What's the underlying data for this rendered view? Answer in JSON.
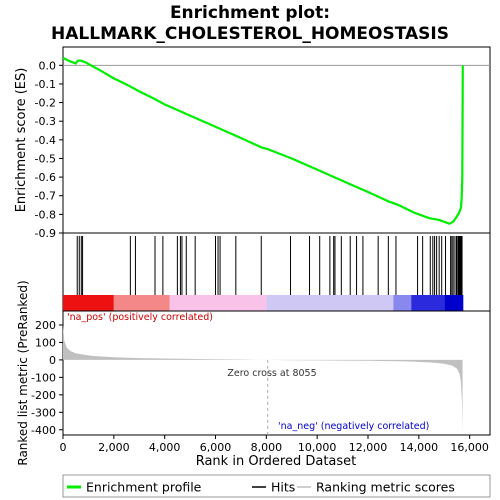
{
  "chart_data": {
    "type": "line",
    "title_line1": "Enrichment plot:",
    "title_line2": "HALLMARK_CHOLESTEROL_HOMEOSTASIS",
    "xlabel": "Rank in Ordered Dataset",
    "ylabel_top": "Enrichment score (ES)",
    "ylabel_bottom": "Ranked list metric (PreRanked)",
    "x_range": [
      0,
      16800
    ],
    "x_ticks": [
      0,
      2000,
      4000,
      6000,
      8000,
      10000,
      12000,
      14000,
      16000
    ],
    "x_tick_labels": [
      "0",
      "2,000",
      "4,000",
      "6,000",
      "8,000",
      "10,000",
      "12,000",
      "14,000",
      "16,000"
    ],
    "es_range": [
      -0.9,
      0.05
    ],
    "es_ticks": [
      0.0,
      -0.1,
      -0.2,
      -0.3,
      -0.4,
      -0.5,
      -0.6,
      -0.7,
      -0.8,
      -0.9
    ],
    "es_tick_labels": [
      "0.0",
      "-0.1",
      "-0.2",
      "-0.3",
      "-0.4",
      "-0.5",
      "-0.6",
      "-0.7",
      "-0.8",
      "-0.9"
    ],
    "metric_range": [
      -430,
      280
    ],
    "metric_ticks": [
      200,
      100,
      0,
      -100,
      -200,
      -300,
      -400
    ],
    "metric_tick_labels": [
      "200",
      "100",
      "0",
      "-100",
      "-200",
      "-300",
      "-400"
    ],
    "enrichment_profile": {
      "x": [
        0,
        300,
        500,
        550,
        600,
        700,
        800,
        900,
        1500,
        2000,
        2600,
        3000,
        3600,
        4000,
        4500,
        5000,
        6000,
        7000,
        7800,
        8055,
        9000,
        10000,
        11000,
        12000,
        12800,
        13200,
        13800,
        14200,
        14400,
        14600,
        14800,
        15000,
        15200,
        15350,
        15450,
        15550,
        15620,
        15660,
        15690,
        15710,
        15720,
        15730
      ],
      "y": [
        0.04,
        0.02,
        0.01,
        0.02,
        0.025,
        0.025,
        0.02,
        0.015,
        -0.03,
        -0.07,
        -0.11,
        -0.14,
        -0.18,
        -0.21,
        -0.24,
        -0.27,
        -0.33,
        -0.39,
        -0.44,
        -0.45,
        -0.5,
        -0.56,
        -0.62,
        -0.68,
        -0.73,
        -0.75,
        -0.79,
        -0.81,
        -0.82,
        -0.825,
        -0.83,
        -0.84,
        -0.85,
        -0.84,
        -0.82,
        -0.8,
        -0.78,
        -0.76,
        -0.7,
        -0.6,
        -0.3,
        0.0
      ],
      "color": "#00ee00"
    },
    "hits": [
      560,
      640,
      720,
      770,
      2650,
      2850,
      3620,
      3930,
      4500,
      4620,
      4680,
      4850,
      5200,
      6000,
      6100,
      6180,
      6800,
      7800,
      8950,
      9700,
      10100,
      10500,
      10650,
      10700,
      10950,
      11300,
      11550,
      11800,
      12400,
      12800,
      13100,
      13950,
      14150,
      14450,
      14550,
      14620,
      14700,
      14800,
      14900,
      15050,
      15250,
      15300,
      15350,
      15420,
      15480,
      15500,
      15550,
      15580,
      15600,
      15620,
      15640,
      15660,
      15680,
      15700
    ],
    "ranking_metric": {
      "x": [
        0,
        50,
        150,
        300,
        500,
        800,
        1200,
        2000,
        3000,
        4000,
        5000,
        6000,
        7000,
        8055,
        9000,
        10000,
        11000,
        12000,
        13000,
        13800,
        14500,
        15000,
        15300,
        15500,
        15600,
        15650,
        15700,
        15720
      ],
      "y": [
        200,
        110,
        70,
        50,
        38,
        30,
        22,
        15,
        10,
        8,
        6,
        4,
        2,
        0,
        -2,
        -3,
        -4,
        -5,
        -7,
        -10,
        -15,
        -22,
        -32,
        -50,
        -80,
        -120,
        -250,
        -420
      ],
      "color": "#c0c0c0"
    },
    "zero_cross_label": "Zero cross at 8055",
    "zero_cross_x": 8055,
    "na_pos_label": "'na_pos' (positively correlated)",
    "na_neg_label": "'na_neg' (negatively correlated)",
    "na_pos_color": "#cc0000",
    "na_neg_color": "#0000cc",
    "legend": [
      {
        "label": "Enrichment profile",
        "color": "#00ee00"
      },
      {
        "label": "Hits",
        "color": "#000000"
      },
      {
        "label": "Ranking metric scores",
        "color": "#c0c0c0"
      }
    ],
    "heatmap_band": {
      "x": [
        0,
        2000,
        4200,
        8000,
        13000,
        13700,
        15000,
        15750
      ],
      "colors": [
        "#ee1111",
        "#f48888",
        "#f9c2e8",
        "#d0c8f4",
        "#8888ee",
        "#2b2bdd",
        "#0000cc"
      ]
    }
  }
}
